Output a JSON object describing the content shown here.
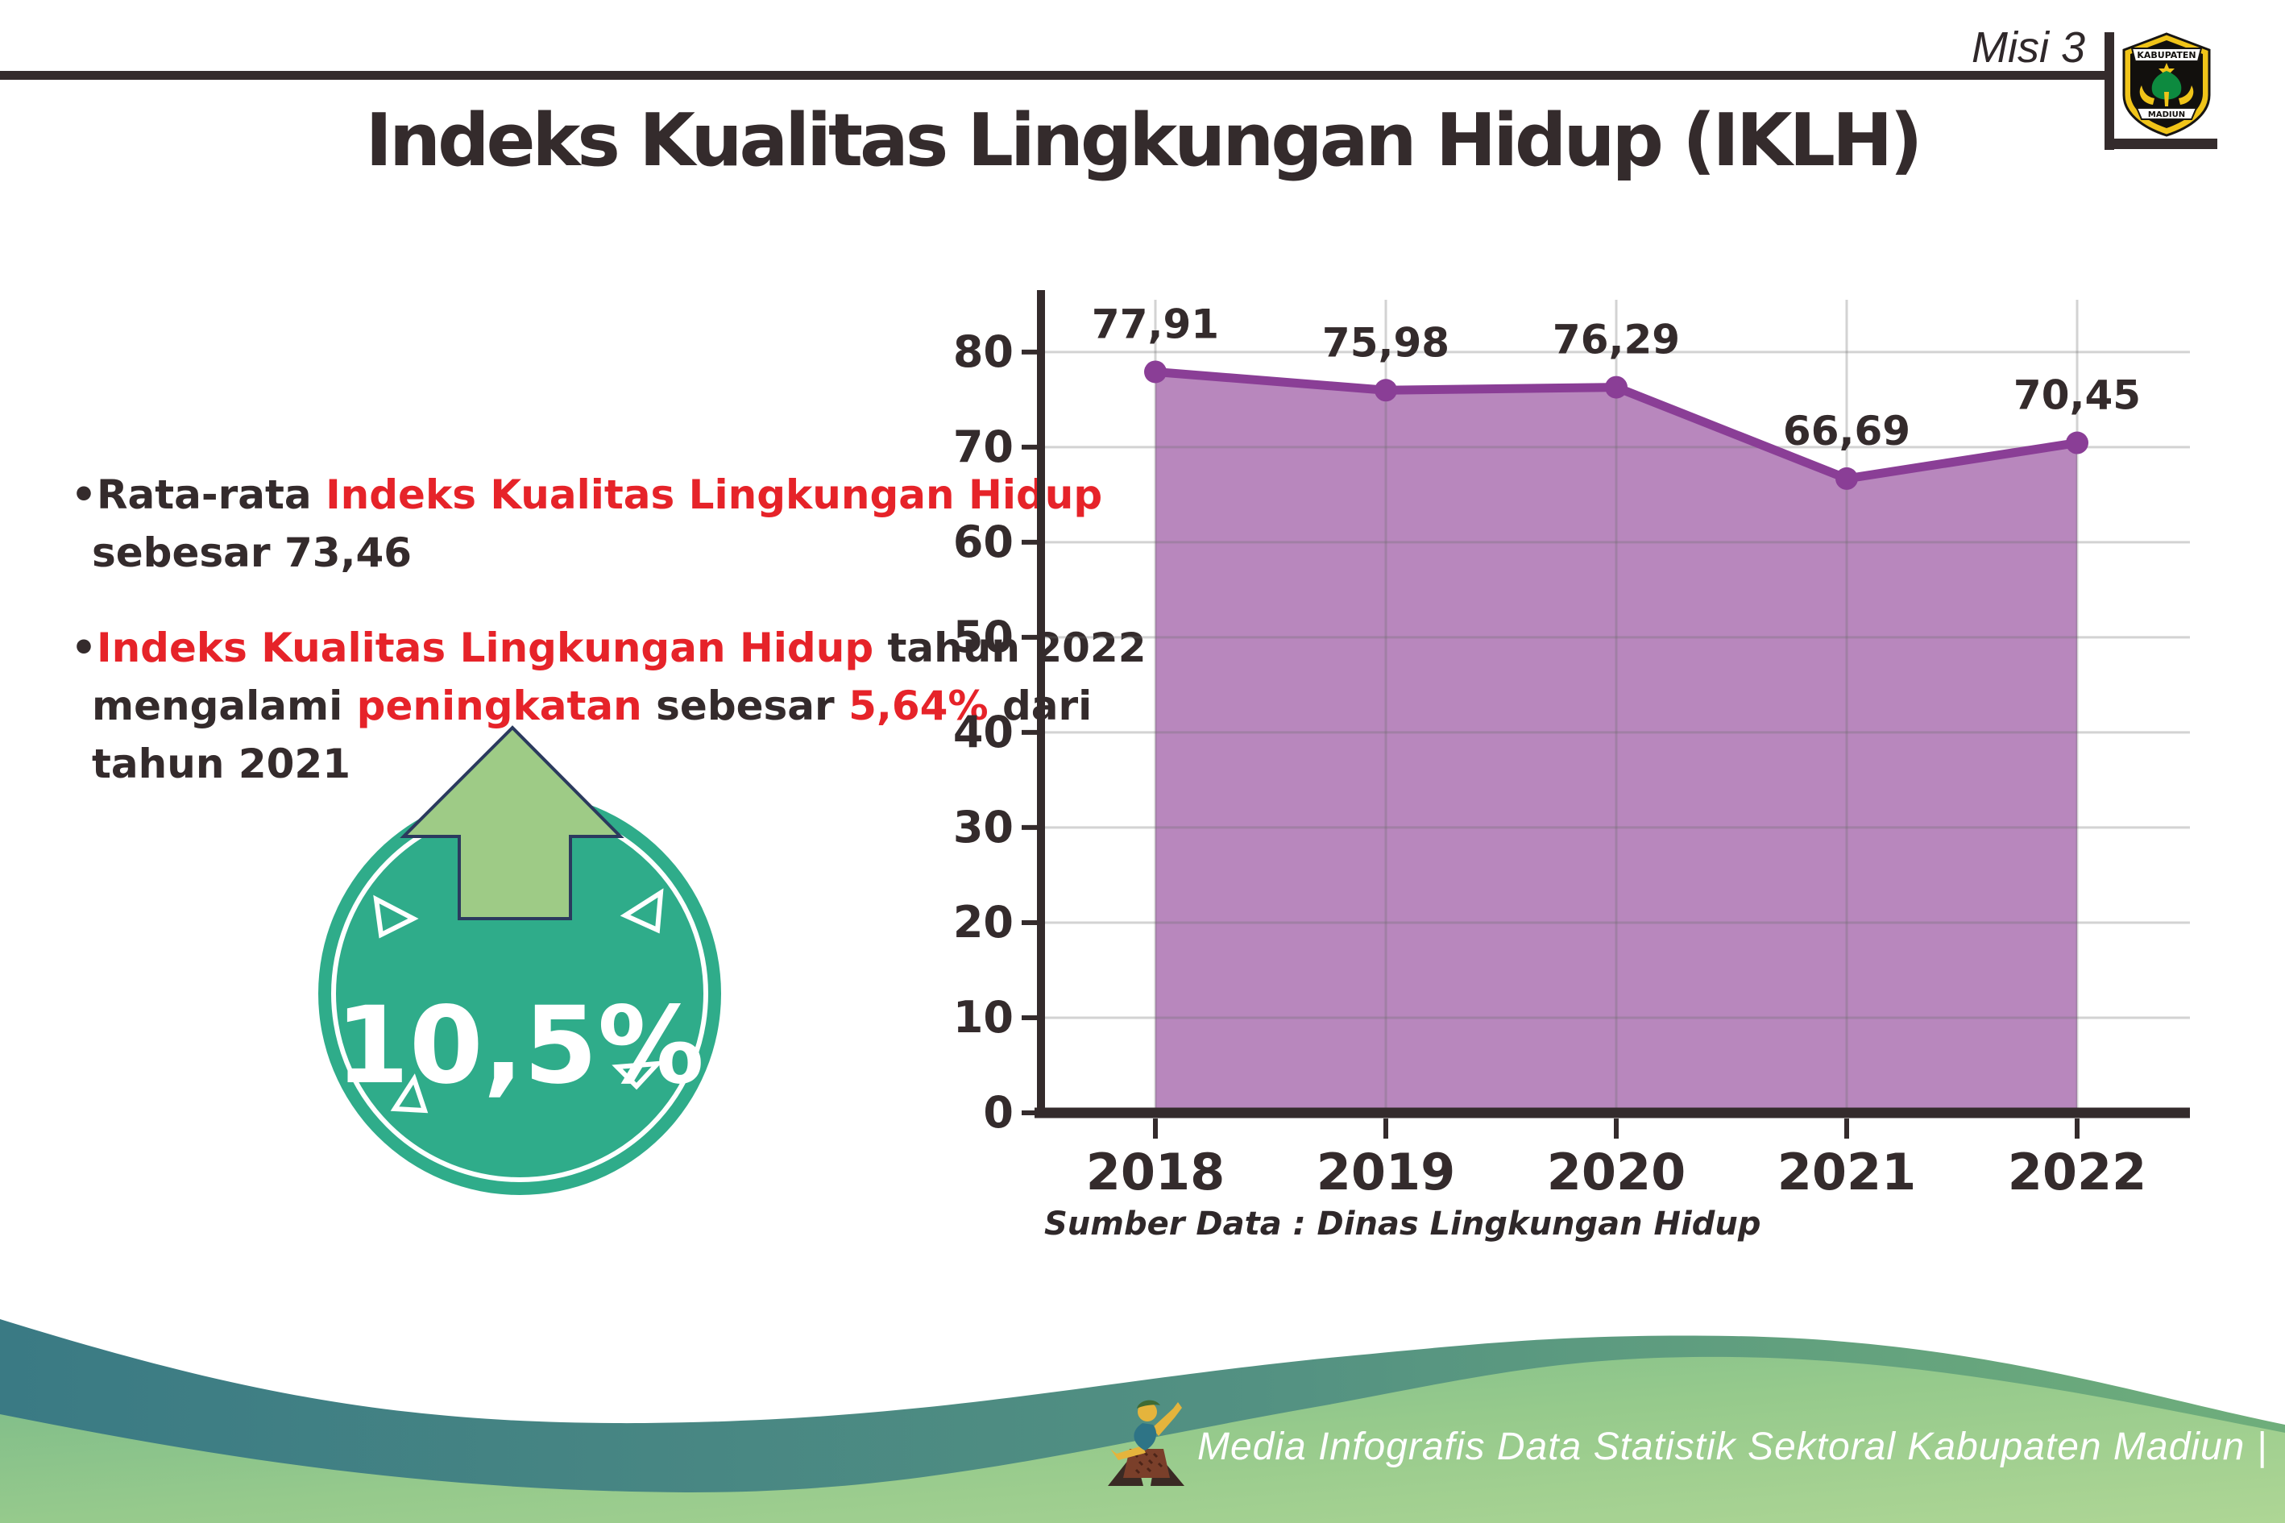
{
  "page": {
    "misi_label": "Misi 3",
    "title": "Indeks Kualitas Lingkungan Hidup (IKLH)"
  },
  "logo": {
    "top_text": "KABUPATEN",
    "bottom_text": "MADIUN"
  },
  "bullets": {
    "bullet_char": "•",
    "items": [
      {
        "lines": [
          [
            {
              "t": "Rata-rata ",
              "c": "dark"
            },
            {
              "t": "Indeks Kualitas Lingkungan Hidup",
              "c": "red"
            }
          ],
          [
            {
              "t": "sebesar 73,46",
              "c": "dark"
            }
          ]
        ]
      },
      {
        "lines": [
          [
            {
              "t": "Indeks Kualitas Lingkungan Hidup",
              "c": "red"
            },
            {
              "t": " tahun 2022",
              "c": "dark"
            }
          ],
          [
            {
              "t": "mengalami ",
              "c": "dark"
            },
            {
              "t": "peningkatan",
              "c": "red"
            },
            {
              "t": " sebesar ",
              "c": "dark"
            },
            {
              "t": "5,64%",
              "c": "red"
            },
            {
              "t": " dari",
              "c": "dark"
            }
          ],
          [
            {
              "t": "tahun 2021",
              "c": "dark"
            }
          ]
        ]
      }
    ]
  },
  "badge": {
    "value": "10,5%",
    "arrow_icon": "up-arrow"
  },
  "chart_data": {
    "type": "area",
    "x": [
      "2018",
      "2019",
      "2020",
      "2021",
      "2022"
    ],
    "series": [
      {
        "name": "IKLH",
        "values": [
          77.91,
          75.98,
          76.29,
          66.69,
          70.45
        ]
      }
    ],
    "point_labels": [
      "77,91",
      "75,98",
      "76,29",
      "66,69",
      "70,45"
    ],
    "yticks": [
      0,
      10,
      20,
      30,
      40,
      50,
      60,
      70,
      80
    ],
    "ylim": [
      0,
      86
    ],
    "grid": true,
    "legend_position": "none",
    "xlabel": "",
    "ylabel": ""
  },
  "source_text": "Sumber Data : Dinas Lingkungan Hidup",
  "footer": {
    "text": "Media Infografis Data Statistik Sektoral Kabupaten Madiun |",
    "mascot_icon": "dancer-mascot"
  },
  "colors": {
    "dark": "#342b2c",
    "red": "#e62329",
    "area_fill": "#b887bd",
    "line": "#8a3e96",
    "grid": "rgba(110,110,110,0.30)",
    "badge_teal": "#2fac8a",
    "arrow_green": "#9ecb86",
    "arrow_outline": "#2b3a5e",
    "footer_teal_left": "#3a7a84",
    "footer_teal_right": "#6fae7b",
    "footer_green_light": "#9ccd8d"
  }
}
